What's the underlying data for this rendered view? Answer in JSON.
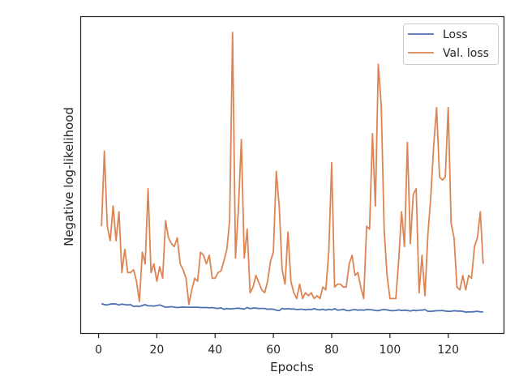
{
  "chart_data": {
    "type": "line",
    "xlabel": "Epochs",
    "ylabel": "Negative log-likelihood",
    "xlim": [
      -6,
      139
    ],
    "ylim": [
      0.0,
      1.0
    ],
    "xticks": [
      0,
      20,
      40,
      60,
      80,
      100,
      120
    ],
    "yticks_shown": false,
    "grid": false,
    "legend_position": "top-right",
    "x": [
      1,
      2,
      3,
      4,
      5,
      6,
      7,
      8,
      9,
      10,
      11,
      12,
      13,
      14,
      15,
      16,
      17,
      18,
      19,
      20,
      21,
      22,
      23,
      24,
      25,
      26,
      27,
      28,
      29,
      30,
      31,
      32,
      33,
      34,
      35,
      36,
      37,
      38,
      39,
      40,
      41,
      42,
      43,
      44,
      45,
      46,
      47,
      48,
      49,
      50,
      51,
      52,
      53,
      54,
      55,
      56,
      57,
      58,
      59,
      60,
      61,
      62,
      63,
      64,
      65,
      66,
      67,
      68,
      69,
      70,
      71,
      72,
      73,
      74,
      75,
      76,
      77,
      78,
      79,
      80,
      81,
      82,
      83,
      84,
      85,
      86,
      87,
      88,
      89,
      90,
      91,
      92,
      93,
      94,
      95,
      96,
      97,
      98,
      99,
      100,
      101,
      102,
      103,
      104,
      105,
      106,
      107,
      108,
      109,
      110,
      111,
      112,
      113,
      114,
      115,
      116,
      117,
      118,
      119,
      120,
      121,
      122,
      123,
      124,
      125,
      126,
      127,
      128,
      129,
      130,
      131,
      132
    ],
    "series": [
      {
        "name": "Loss",
        "color": "#4c72b0",
        "values": [
          0.063,
          0.059,
          0.058,
          0.061,
          0.062,
          0.061,
          0.058,
          0.061,
          0.059,
          0.058,
          0.059,
          0.053,
          0.054,
          0.053,
          0.056,
          0.059,
          0.055,
          0.055,
          0.054,
          0.056,
          0.058,
          0.054,
          0.05,
          0.051,
          0.052,
          0.05,
          0.049,
          0.05,
          0.051,
          0.05,
          0.05,
          0.05,
          0.05,
          0.05,
          0.049,
          0.049,
          0.049,
          0.048,
          0.049,
          0.047,
          0.046,
          0.048,
          0.043,
          0.046,
          0.044,
          0.045,
          0.046,
          0.047,
          0.045,
          0.044,
          0.049,
          0.045,
          0.047,
          0.047,
          0.046,
          0.046,
          0.046,
          0.043,
          0.044,
          0.043,
          0.04,
          0.038,
          0.046,
          0.044,
          0.045,
          0.044,
          0.044,
          0.042,
          0.043,
          0.043,
          0.041,
          0.043,
          0.042,
          0.045,
          0.042,
          0.041,
          0.043,
          0.04,
          0.043,
          0.041,
          0.045,
          0.04,
          0.041,
          0.043,
          0.039,
          0.038,
          0.041,
          0.042,
          0.04,
          0.041,
          0.04,
          0.042,
          0.042,
          0.041,
          0.039,
          0.038,
          0.041,
          0.042,
          0.041,
          0.039,
          0.038,
          0.039,
          0.041,
          0.039,
          0.04,
          0.039,
          0.037,
          0.04,
          0.038,
          0.04,
          0.04,
          0.042,
          0.036,
          0.036,
          0.037,
          0.038,
          0.038,
          0.039,
          0.037,
          0.036,
          0.036,
          0.038,
          0.037,
          0.037,
          0.036,
          0.033,
          0.034,
          0.034,
          0.035,
          0.036,
          0.034,
          0.034
        ]
      },
      {
        "name": "Val. loss",
        "color": "#dd8452",
        "values": [
          0.33,
          0.59,
          0.33,
          0.28,
          0.4,
          0.28,
          0.38,
          0.17,
          0.25,
          0.17,
          0.17,
          0.18,
          0.14,
          0.07,
          0.24,
          0.2,
          0.46,
          0.17,
          0.2,
          0.14,
          0.19,
          0.15,
          0.35,
          0.29,
          0.27,
          0.26,
          0.29,
          0.2,
          0.18,
          0.15,
          0.06,
          0.11,
          0.15,
          0.14,
          0.24,
          0.23,
          0.2,
          0.23,
          0.15,
          0.15,
          0.17,
          0.175,
          0.21,
          0.25,
          0.35,
          1.0,
          0.22,
          0.39,
          0.63,
          0.22,
          0.32,
          0.1,
          0.12,
          0.16,
          0.135,
          0.11,
          0.1,
          0.14,
          0.21,
          0.24,
          0.52,
          0.4,
          0.18,
          0.13,
          0.31,
          0.14,
          0.1,
          0.08,
          0.13,
          0.08,
          0.1,
          0.09,
          0.1,
          0.08,
          0.09,
          0.08,
          0.12,
          0.11,
          0.24,
          0.55,
          0.12,
          0.13,
          0.13,
          0.12,
          0.12,
          0.2,
          0.23,
          0.16,
          0.17,
          0.12,
          0.08,
          0.33,
          0.32,
          0.65,
          0.4,
          0.89,
          0.75,
          0.32,
          0.16,
          0.08,
          0.08,
          0.08,
          0.21,
          0.38,
          0.26,
          0.62,
          0.27,
          0.44,
          0.46,
          0.1,
          0.23,
          0.09,
          0.3,
          0.43,
          0.61,
          0.74,
          0.5,
          0.49,
          0.5,
          0.74,
          0.34,
          0.29,
          0.12,
          0.11,
          0.16,
          0.11,
          0.16,
          0.15,
          0.26,
          0.29,
          0.38,
          0.2
        ]
      }
    ]
  }
}
